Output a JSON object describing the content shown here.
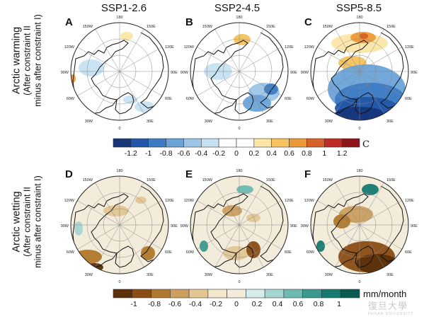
{
  "columns": [
    "SSP1-2.6",
    "SSP2-4.5",
    "SSP5-8.5"
  ],
  "rows": [
    {
      "title": "Arctic warming",
      "subtitle_1": "(After constraint II",
      "subtitle_2": "minus after constraint I)"
    },
    {
      "title": "Arctic wetting",
      "subtitle_1": "(After constraint II",
      "subtitle_2": "minus after constraint I)"
    }
  ],
  "panel_letters": [
    "A",
    "B",
    "C",
    "D",
    "E",
    "F"
  ],
  "map_labels": {
    "top": "180",
    "bottom": "0",
    "upper_left": "150W",
    "upper_right": "150E",
    "left_upper": "120W",
    "right_upper": "120E",
    "left_mid": "90W",
    "right_mid": "90E",
    "left_lower": "60W",
    "right_lower": "60E",
    "lower_left": "30W",
    "lower_right": "30E"
  },
  "colorbar_temperature": {
    "unit": "C",
    "ticks": [
      "-1.2",
      "-1",
      "-0.8",
      "-0.6",
      "-0.4",
      "-0.2",
      "0",
      "0.2",
      "0.4",
      "0.6",
      "0.8",
      "1",
      "1.2"
    ],
    "colors": [
      "#16357a",
      "#2356a6",
      "#3d7cc4",
      "#6aa3d8",
      "#9cc6e6",
      "#c6e1f1",
      "#ffffff",
      "#ffffff",
      "#fbe6a6",
      "#f6c35e",
      "#eb9a3a",
      "#d8602a",
      "#c02a26",
      "#8f1419"
    ]
  },
  "colorbar_precip": {
    "unit": "mm/month",
    "ticks": [
      "-1",
      "-0.8",
      "-0.6",
      "-0.4",
      "-0.2",
      "0",
      "0.2",
      "0.4",
      "0.6",
      "0.8",
      "1"
    ],
    "colors": [
      "#5c300a",
      "#8a4d14",
      "#b0782c",
      "#cba060",
      "#e2c795",
      "#f2e6cb",
      "#f4ecdb",
      "#d6ece9",
      "#a6d6d0",
      "#6cbab1",
      "#3a9a90",
      "#177a71",
      "#0a5a52"
    ]
  },
  "watermark": {
    "text": "復旦大學",
    "sub": "FUDAN UNIVERSITY"
  },
  "icon_names": {
    "map": "polar-stereographic-map"
  }
}
